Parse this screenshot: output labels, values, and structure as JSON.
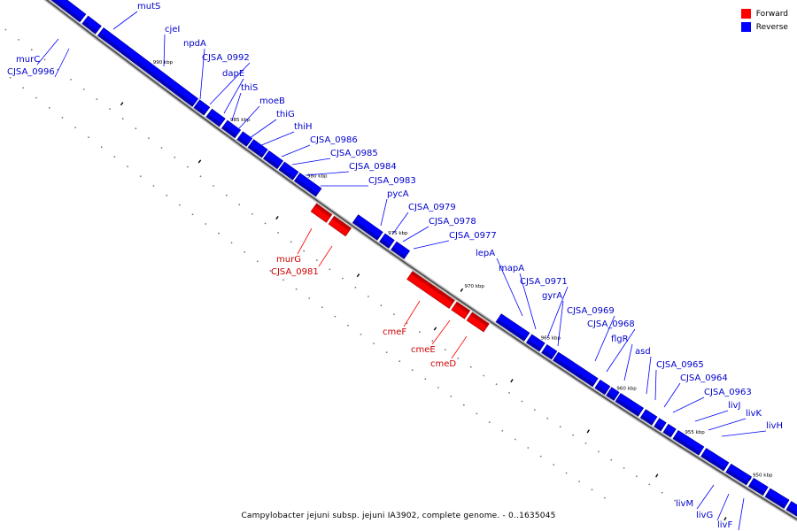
{
  "legend": {
    "forward_label": "Forward",
    "reverse_label": "Reverse",
    "forward_color": "#ff0000",
    "reverse_color": "#0000ff"
  },
  "caption": "Campylobacter jejuni subsp. jejuni IA3902, complete genome. - 0..1635045",
  "ticks": [
    "990 kbp",
    "985 kbp",
    "980 kbp",
    "975 kbp",
    "970 kbp",
    "965 kbp",
    "960 kbp",
    "955 kbp",
    "950 kbp"
  ],
  "reverse_genes": [
    "mutS",
    "murC",
    "CJSA_0996",
    "cjeI",
    "npdA",
    "CJSA_0992",
    "dapE",
    "thiS",
    "moeB",
    "thiG",
    "thiH",
    "CJSA_0986",
    "CJSA_0985",
    "CJSA_0984",
    "CJSA_0983",
    "pycA",
    "CJSA_0979",
    "CJSA_0978",
    "CJSA_0977",
    "lepA",
    "mapA",
    "CJSA_0971",
    "gyrA",
    "CJSA_0969",
    "CJSA_0968",
    "flgR",
    "asd",
    "CJSA_0965",
    "CJSA_0964",
    "CJSA_0963",
    "livJ",
    "livK",
    "livH",
    "livM",
    "livG",
    "livF"
  ],
  "forward_genes": [
    "murG",
    "CJSA_0981",
    "cmeF",
    "cmeE",
    "cmeD"
  ]
}
